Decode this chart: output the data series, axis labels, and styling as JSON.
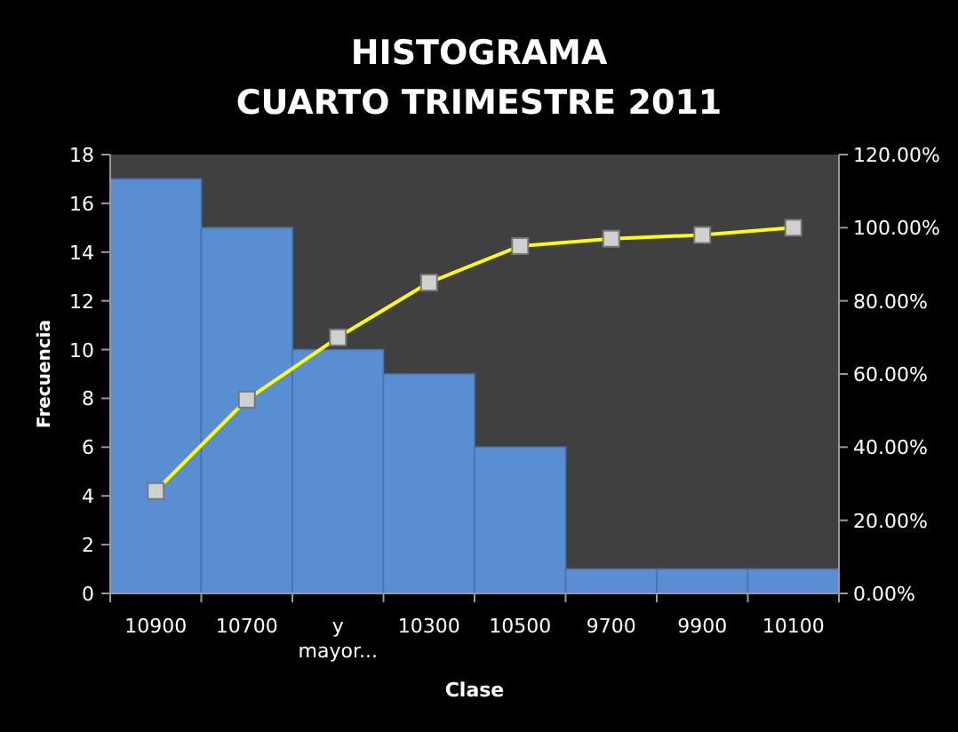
{
  "chart_data": {
    "type": "bar",
    "title": "HISTOGRAMA",
    "subtitle": "CUARTO TRIMESTRE 2011",
    "xlabel": "Clase",
    "ylabel": "Frecuencia",
    "categories": [
      "10900",
      "10700",
      "y mayor...",
      "10300",
      "10500",
      "9700",
      "9900",
      "10100"
    ],
    "series": [
      {
        "color": "#5a8ed2",
        "values": [
          17,
          15,
          10,
          9,
          6,
          1,
          1,
          1
        ]
      },
      {
        "type": "line",
        "axis": "y2",
        "color": "#ffff00",
        "marker": "square",
        "values": [
          28,
          53,
          70,
          85,
          95,
          97,
          98,
          100
        ]
      }
    ],
    "ylim": [
      0,
      18
    ],
    "yticks": [
      0,
      2,
      4,
      6,
      8,
      10,
      12,
      14,
      16,
      18
    ],
    "y2lim": [
      0,
      120
    ],
    "y2ticks": [
      {
        "value": 0,
        "label": "0.00%"
      },
      {
        "value": 20,
        "label": "20.00%"
      },
      {
        "value": 40,
        "label": "40.00%"
      },
      {
        "value": 60,
        "label": "60.00%"
      },
      {
        "value": 80,
        "label": "80.00%"
      },
      {
        "value": 100,
        "label": "100.00%"
      },
      {
        "value": 120,
        "label": "120.00%"
      }
    ]
  }
}
